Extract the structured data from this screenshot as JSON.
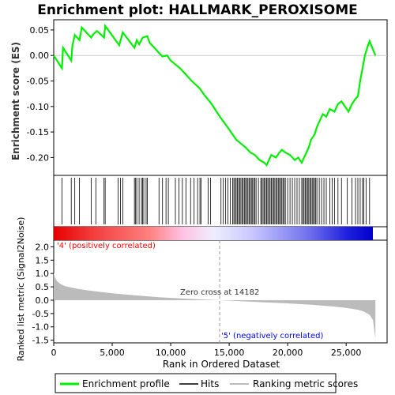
{
  "chart_data": {
    "type": "line",
    "title": "Enrichment plot: HALLMARK_PEROXISOME",
    "xlabel": "Rank in Ordered Dataset",
    "ylabel_top": "Enrichment score (ES)",
    "ylabel_bottom": "Ranked list metric (Signal2Noise)",
    "xlim": [
      0,
      28500
    ],
    "x_ticks": [
      0,
      5000,
      10000,
      15000,
      20000,
      25000
    ],
    "x_tick_labels": [
      "0",
      "5,000",
      "10,000",
      "15,000",
      "20,000",
      "25,000"
    ],
    "es_ylim": [
      -0.235,
      0.07
    ],
    "es_ticks": [
      0.05,
      0.0,
      -0.05,
      -0.1,
      -0.15,
      -0.2
    ],
    "es_tick_labels": [
      "0.05",
      "0.00",
      "-0.05",
      "-0.10",
      "-0.15",
      "-0.20"
    ],
    "metric_ylim": [
      -1.6,
      2.25
    ],
    "metric_ticks": [
      2.0,
      1.5,
      1.0,
      0.5,
      0.0,
      -0.5,
      -1.0,
      -1.5
    ],
    "metric_tick_labels": [
      "2.0",
      "1.5",
      "1.0",
      "0.5",
      "0.0",
      "-0.5",
      "-1.0",
      "-1.5"
    ],
    "series": [
      {
        "name": "Enrichment profile",
        "color": "#00ee00",
        "x": [
          0,
          700,
          800,
          1500,
          1600,
          1800,
          2200,
          2400,
          3200,
          3400,
          3700,
          4300,
          4400,
          5600,
          5900,
          6900,
          7100,
          7300,
          7600,
          8000,
          8200,
          9000,
          9300,
          9700,
          10000,
          10800,
          11200,
          11800,
          12500,
          12800,
          13500,
          14200,
          15000,
          15600,
          16400,
          16800,
          17200,
          17600,
          18000,
          18200,
          18400,
          18600,
          19000,
          19300,
          19500,
          19800,
          20200,
          20400,
          20600,
          20900,
          21200,
          21500,
          21800,
          22000,
          22300,
          22500,
          22700,
          23000,
          23300,
          23600,
          24000,
          24300,
          24600,
          24900,
          25200,
          25500,
          25800,
          26000,
          26200,
          26400,
          26600,
          26800,
          27000,
          27500
        ],
        "y": [
          0.0,
          -0.025,
          0.015,
          -0.01,
          0.02,
          0.04,
          0.03,
          0.055,
          0.035,
          0.042,
          0.048,
          0.035,
          0.058,
          0.02,
          0.045,
          0.015,
          0.03,
          0.022,
          0.035,
          0.038,
          0.025,
          0.005,
          -0.002,
          0.0,
          -0.01,
          -0.025,
          -0.035,
          -0.05,
          -0.065,
          -0.075,
          -0.095,
          -0.12,
          -0.145,
          -0.165,
          -0.18,
          -0.19,
          -0.195,
          -0.205,
          -0.21,
          -0.215,
          -0.205,
          -0.195,
          -0.2,
          -0.19,
          -0.185,
          -0.19,
          -0.195,
          -0.2,
          -0.205,
          -0.2,
          -0.21,
          -0.195,
          -0.18,
          -0.165,
          -0.155,
          -0.14,
          -0.13,
          -0.115,
          -0.12,
          -0.105,
          -0.11,
          -0.095,
          -0.09,
          -0.1,
          -0.11,
          -0.095,
          -0.085,
          -0.08,
          -0.05,
          -0.025,
          0.0,
          0.015,
          0.028,
          0.0
        ]
      }
    ],
    "hits": [
      700,
      1500,
      1800,
      2200,
      3200,
      3600,
      4300,
      4400,
      5500,
      5700,
      5900,
      6900,
      7000,
      7100,
      7300,
      7500,
      7600,
      7700,
      7900,
      8000,
      9000,
      9300,
      9600,
      9800,
      10400,
      10700,
      11000,
      11300,
      11700,
      12000,
      12300,
      12500,
      12600,
      13200,
      13400,
      14300,
      14500,
      14700,
      14900,
      15100,
      15300,
      15400,
      15500,
      15600,
      15700,
      15800,
      15900,
      16000,
      16100,
      16200,
      16300,
      16400,
      16500,
      16600,
      16700,
      16800,
      16900,
      17000,
      17100,
      17200,
      17300,
      17500,
      17700,
      17800,
      17900,
      18000,
      18100,
      18200,
      18300,
      18400,
      18500,
      18600,
      18700,
      18800,
      18900,
      19000,
      19100,
      19200,
      19300,
      19400,
      19500,
      19600,
      19700,
      19800,
      20000,
      20200,
      20400,
      20600,
      20800,
      21000,
      21200,
      21300,
      21400,
      21500,
      21600,
      21700,
      21800,
      21900,
      22000,
      22100,
      22200,
      22300,
      22400,
      22500,
      22700,
      22900,
      23100,
      23300,
      23600,
      23800,
      24000,
      24300,
      24600,
      25100,
      25500,
      25800,
      26000,
      26200,
      26400,
      26500,
      26700,
      27000
    ],
    "metric_curve": {
      "x": [
        0,
        100,
        300,
        600,
        1000,
        2000,
        3000,
        5000,
        7000,
        9000,
        11000,
        13000,
        14182,
        16000,
        18000,
        20000,
        22000,
        24000,
        25000,
        26000,
        26500,
        27000,
        27300,
        27500
      ],
      "y": [
        1.05,
        0.85,
        0.7,
        0.6,
        0.52,
        0.43,
        0.36,
        0.26,
        0.18,
        0.11,
        0.06,
        0.02,
        0.0,
        -0.04,
        -0.08,
        -0.12,
        -0.17,
        -0.24,
        -0.29,
        -0.36,
        -0.42,
        -0.55,
        -0.75,
        -1.45
      ]
    },
    "zero_cross_label": "Zero cross at 14182",
    "zero_cross_x": 14182,
    "pos_label": "'4' (positively correlated)",
    "neg_label": "'5' (negatively correlated)",
    "legend": [
      "Enrichment profile",
      "Hits",
      "Ranking metric scores"
    ],
    "colors": {
      "es_line": "#00ee00",
      "hits": "#000000",
      "metric_fill": "#bbbbbb",
      "pos_text": "#ff0000",
      "neg_text": "#0000ff",
      "zero_line": "#9999aa"
    }
  }
}
